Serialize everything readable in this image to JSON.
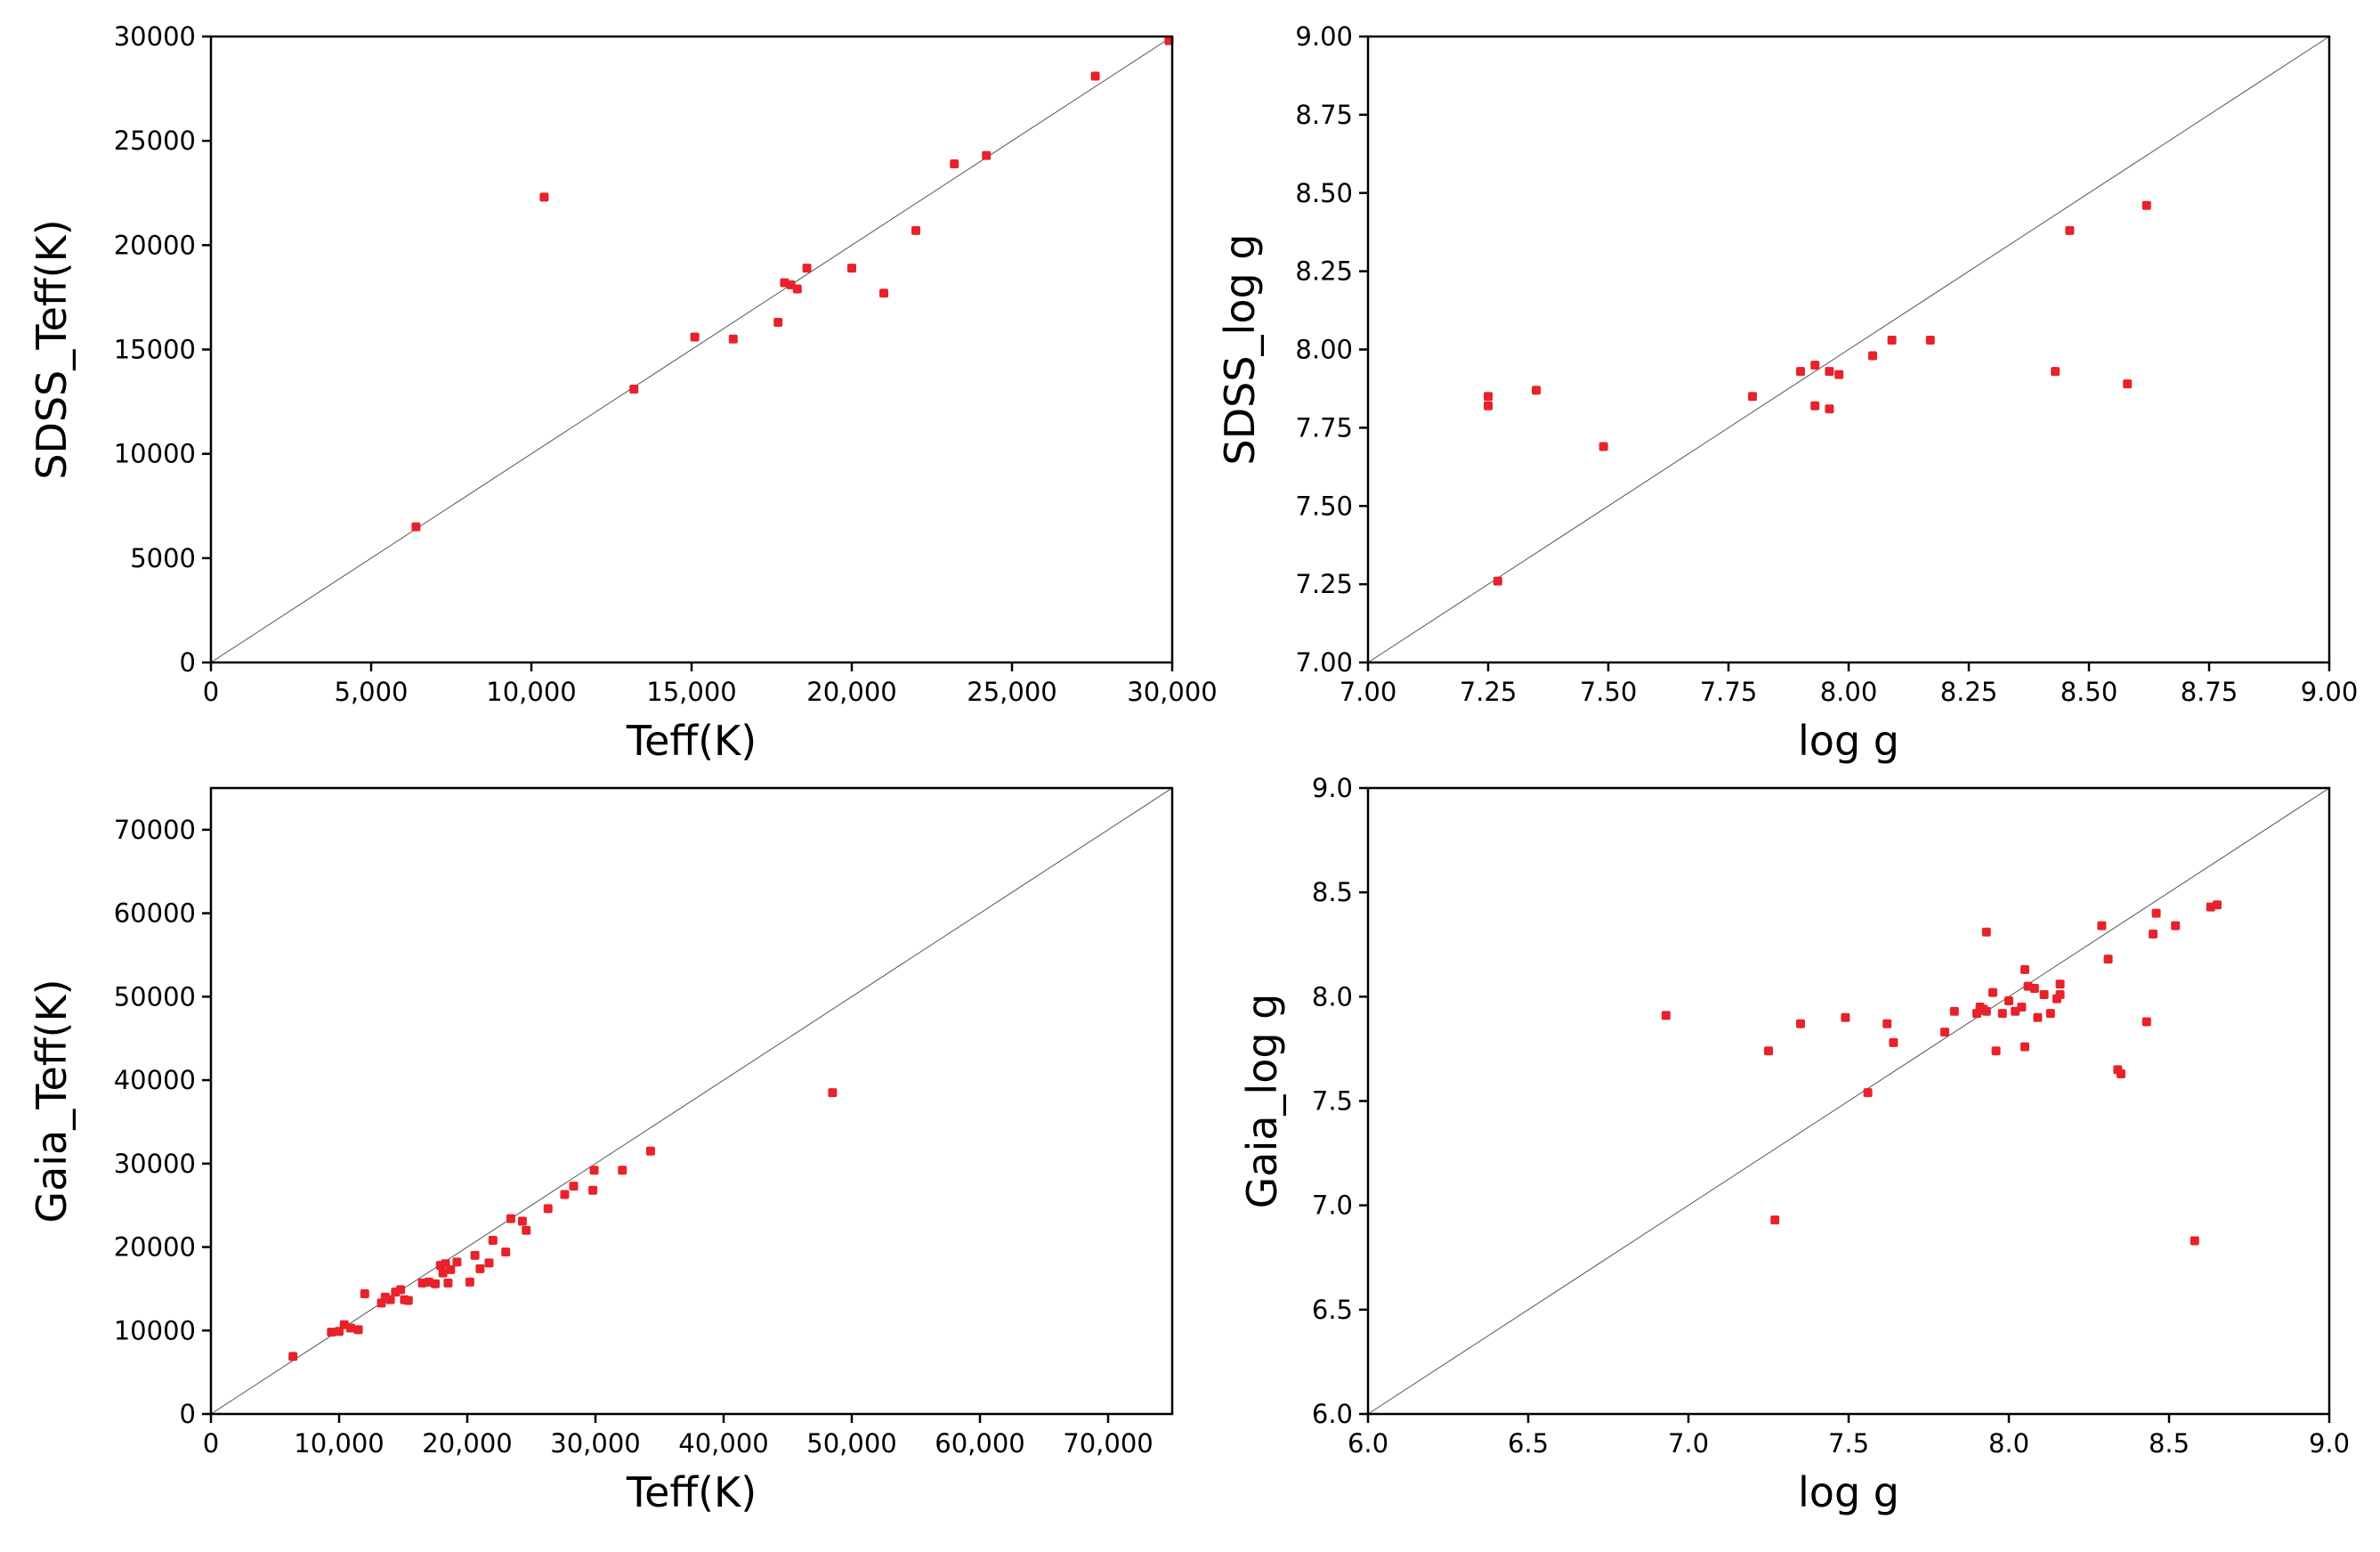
{
  "chart_data": [
    {
      "type": "scatter",
      "xlabel": "Teff(K)",
      "ylabel": "SDSS_Teff(K)",
      "xlim": [
        0,
        30000
      ],
      "ylim": [
        0,
        30000
      ],
      "xticks": [
        0,
        5000,
        10000,
        15000,
        20000,
        25000,
        30000
      ],
      "xtick_labels": [
        "0",
        "5,000",
        "10,000",
        "15,000",
        "20,000",
        "25,000",
        "30,000"
      ],
      "yticks": [
        0,
        5000,
        10000,
        15000,
        20000,
        25000,
        30000
      ],
      "ytick_labels": [
        "0",
        "5000",
        "10000",
        "15000",
        "20000",
        "25000",
        "30000"
      ],
      "reference_line": "y = x",
      "color": "#e8222b",
      "points": [
        [
          6400,
          6500
        ],
        [
          10400,
          22300
        ],
        [
          13200,
          13100
        ],
        [
          15100,
          15600
        ],
        [
          16300,
          15500
        ],
        [
          17700,
          16300
        ],
        [
          17900,
          18200
        ],
        [
          18100,
          18100
        ],
        [
          18300,
          17900
        ],
        [
          18600,
          18900
        ],
        [
          20000,
          18900
        ],
        [
          21000,
          17700
        ],
        [
          22000,
          20700
        ],
        [
          23200,
          23900
        ],
        [
          24200,
          24300
        ],
        [
          27600,
          28100
        ],
        [
          29900,
          29800
        ]
      ]
    },
    {
      "type": "scatter",
      "xlabel": "log g",
      "ylabel": "SDSS_log g",
      "xlim": [
        7.0,
        9.0
      ],
      "ylim": [
        7.0,
        9.0
      ],
      "xticks": [
        7.0,
        7.25,
        7.5,
        7.75,
        8.0,
        8.25,
        8.5,
        8.75,
        9.0
      ],
      "xtick_labels": [
        "7.00",
        "7.25",
        "7.50",
        "7.75",
        "8.00",
        "8.25",
        "8.50",
        "8.75",
        "9.00"
      ],
      "yticks": [
        7.0,
        7.25,
        7.5,
        7.75,
        8.0,
        8.25,
        8.5,
        8.75,
        9.0
      ],
      "ytick_labels": [
        "7.00",
        "7.25",
        "7.50",
        "7.75",
        "8.00",
        "8.25",
        "8.50",
        "8.75",
        "9.00"
      ],
      "reference_line": "y = x",
      "color": "#e8222b",
      "points": [
        [
          7.25,
          7.85
        ],
        [
          7.25,
          7.82
        ],
        [
          7.27,
          7.26
        ],
        [
          7.35,
          7.87
        ],
        [
          7.49,
          7.69
        ],
        [
          7.8,
          7.85
        ],
        [
          7.9,
          7.93
        ],
        [
          7.93,
          7.95
        ],
        [
          7.93,
          7.82
        ],
        [
          7.96,
          7.81
        ],
        [
          7.96,
          7.93
        ],
        [
          7.98,
          7.92
        ],
        [
          8.05,
          7.98
        ],
        [
          8.09,
          8.03
        ],
        [
          8.17,
          8.03
        ],
        [
          8.43,
          7.93
        ],
        [
          8.46,
          8.38
        ],
        [
          8.58,
          7.89
        ],
        [
          8.62,
          8.46
        ]
      ]
    },
    {
      "type": "scatter",
      "xlabel": "Teff(K)",
      "ylabel": "Gaia_Teff(K)",
      "xlim": [
        0,
        75000
      ],
      "ylim": [
        0,
        75000
      ],
      "xticks": [
        0,
        10000,
        20000,
        30000,
        40000,
        50000,
        60000,
        70000
      ],
      "xtick_labels": [
        "0",
        "10,000",
        "20,000",
        "30,000",
        "40,000",
        "50,000",
        "60,000",
        "70,000"
      ],
      "yticks": [
        0,
        10000,
        20000,
        30000,
        40000,
        50000,
        60000,
        70000
      ],
      "ytick_labels": [
        "0",
        "10000",
        "20000",
        "30000",
        "40000",
        "50000",
        "60000",
        "70000"
      ],
      "reference_line": "y = x",
      "color": "#e8222b",
      "points": [
        [
          6400,
          6900
        ],
        [
          9400,
          9800
        ],
        [
          10000,
          9900
        ],
        [
          10400,
          10700
        ],
        [
          10900,
          10300
        ],
        [
          11500,
          10100
        ],
        [
          12000,
          14400
        ],
        [
          13300,
          13300
        ],
        [
          13600,
          14000
        ],
        [
          14000,
          13700
        ],
        [
          14400,
          14600
        ],
        [
          14800,
          14900
        ],
        [
          15100,
          13700
        ],
        [
          15400,
          13600
        ],
        [
          16500,
          15700
        ],
        [
          17000,
          15800
        ],
        [
          17500,
          15600
        ],
        [
          17900,
          17800
        ],
        [
          18100,
          16900
        ],
        [
          18300,
          18000
        ],
        [
          18500,
          15700
        ],
        [
          18700,
          17300
        ],
        [
          19200,
          18200
        ],
        [
          20200,
          15800
        ],
        [
          20600,
          19000
        ],
        [
          21000,
          17400
        ],
        [
          21700,
          18100
        ],
        [
          22000,
          20800
        ],
        [
          23000,
          19400
        ],
        [
          23400,
          23400
        ],
        [
          24300,
          23100
        ],
        [
          24600,
          22000
        ],
        [
          26300,
          24600
        ],
        [
          27600,
          26300
        ],
        [
          28300,
          27300
        ],
        [
          29800,
          26800
        ],
        [
          29900,
          29200
        ],
        [
          32100,
          29200
        ],
        [
          34300,
          31500
        ],
        [
          48500,
          38500
        ]
      ]
    },
    {
      "type": "scatter",
      "xlabel": "log g",
      "ylabel": "Gaia_log g",
      "xlim": [
        6.0,
        9.0
      ],
      "ylim": [
        6.0,
        9.0
      ],
      "xticks": [
        6.0,
        6.5,
        7.0,
        7.5,
        8.0,
        8.5,
        9.0
      ],
      "xtick_labels": [
        "6.0",
        "6.5",
        "7.0",
        "7.5",
        "8.0",
        "8.5",
        "9.0"
      ],
      "yticks": [
        6.0,
        6.5,
        7.0,
        7.5,
        8.0,
        8.5,
        9.0
      ],
      "ytick_labels": [
        "6.0",
        "6.5",
        "7.0",
        "7.5",
        "8.0",
        "8.5",
        "9.0"
      ],
      "reference_line": "y = x",
      "color": "#e8222b",
      "points": [
        [
          6.93,
          7.91
        ],
        [
          7.25,
          7.74
        ],
        [
          7.27,
          6.93
        ],
        [
          7.35,
          7.87
        ],
        [
          7.49,
          7.9
        ],
        [
          7.56,
          7.54
        ],
        [
          7.62,
          7.87
        ],
        [
          7.64,
          7.78
        ],
        [
          7.8,
          7.83
        ],
        [
          7.83,
          7.93
        ],
        [
          7.9,
          7.92
        ],
        [
          7.91,
          7.95
        ],
        [
          7.92,
          7.94
        ],
        [
          7.93,
          7.93
        ],
        [
          7.93,
          8.31
        ],
        [
          7.95,
          8.02
        ],
        [
          7.96,
          7.74
        ],
        [
          7.98,
          7.92
        ],
        [
          8.0,
          7.98
        ],
        [
          8.02,
          7.93
        ],
        [
          8.04,
          7.95
        ],
        [
          8.05,
          8.13
        ],
        [
          8.05,
          7.76
        ],
        [
          8.06,
          8.05
        ],
        [
          8.08,
          8.04
        ],
        [
          8.09,
          7.9
        ],
        [
          8.11,
          8.01
        ],
        [
          8.13,
          7.92
        ],
        [
          8.15,
          7.99
        ],
        [
          8.16,
          8.01
        ],
        [
          8.16,
          8.06
        ],
        [
          8.29,
          8.34
        ],
        [
          8.31,
          8.18
        ],
        [
          8.34,
          7.65
        ],
        [
          8.35,
          7.63
        ],
        [
          8.43,
          7.88
        ],
        [
          8.45,
          8.3
        ],
        [
          8.46,
          8.4
        ],
        [
          8.52,
          8.34
        ],
        [
          8.58,
          6.83
        ],
        [
          8.63,
          8.43
        ],
        [
          8.65,
          8.44
        ]
      ]
    }
  ]
}
